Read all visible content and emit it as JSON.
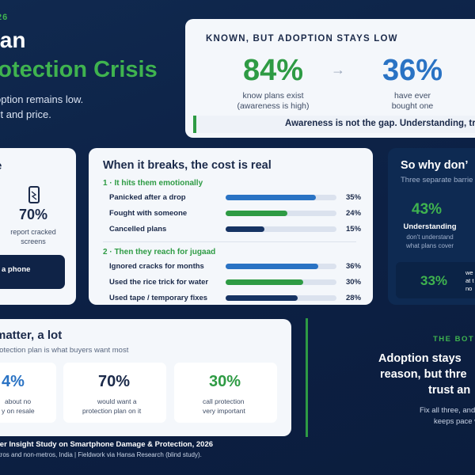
{
  "header": {
    "year": "26",
    "title_line1": "ian",
    "title_line2": "rotection Crisis",
    "subtitle_line1": "option remains low.",
    "subtitle_line2": "st and price."
  },
  "known_card": {
    "title": "KNOWN, BUT ADOPTION STAYS LOW",
    "left_pct": "84%",
    "left_caption_1": "know plans exist",
    "left_caption_2": "(awareness is high)",
    "arrow": "→",
    "right_pct": "36%",
    "right_caption_1": "have ever",
    "right_caption_2": "bought one",
    "banner": "Awareness is not the gap. Understanding, tru",
    "colors": {
      "left": "#2e9b44",
      "right": "#2a73c4"
    }
  },
  "left_card": {
    "title_fragment": "e",
    "icon": "phone-icon",
    "pct": "70%",
    "caption_1": "report cracked",
    "caption_2": "screens",
    "button_label": "a phone"
  },
  "cost_card": {
    "title": "When it breaks, the cost is real",
    "section1": "1 · It hits them emotionally",
    "section2": "2 · Then they reach for jugaad",
    "rows1": [
      {
        "label": "Panicked after a drop",
        "value": "35%",
        "pct": 35,
        "color": "#2a73c4"
      },
      {
        "label": "Fought with someone",
        "value": "24%",
        "pct": 24,
        "color": "#2e9b44"
      },
      {
        "label": "Cancelled plans",
        "value": "15%",
        "pct": 15,
        "color": "#163363"
      }
    ],
    "rows2": [
      {
        "label": "Ignored cracks for months",
        "value": "36%",
        "pct": 36,
        "color": "#2a73c4"
      },
      {
        "label": "Used the rice trick for water",
        "value": "30%",
        "pct": 30,
        "color": "#2e9b44"
      },
      {
        "label": "Used tape / temporary fixes",
        "value": "28%",
        "pct": 28,
        "color": "#163363"
      }
    ]
  },
  "why_card": {
    "title": "So why don’",
    "subtitle": "Three separate barrie",
    "pct": "43%",
    "label": "Understanding",
    "caption_1": "don't understand",
    "caption_2": "what plans cover",
    "box_pct": "33%",
    "box_text_1": "we",
    "box_text_2": "at t",
    "box_text_3": "no"
  },
  "matter_card": {
    "title": "matter, a lot",
    "subtitle": "rotection plan is what buyers want most",
    "stats": [
      {
        "pct": "4%",
        "caption_1": "about no",
        "caption_2": "y on resale",
        "color": "#2a73c4"
      },
      {
        "pct": "70%",
        "caption_1": "would want a",
        "caption_2": "protection plan on it",
        "color": "#1b2a4a"
      },
      {
        "pct": "30%",
        "caption_1": "call protection",
        "caption_2": "very important",
        "color": "#2e9b44"
      }
    ]
  },
  "bottom_panel": {
    "label": "THE BOT",
    "heading_1": "Adoption stays",
    "heading_2": "reason, but thre",
    "heading_3": "trust an",
    "caption_1": "Fix all three, and",
    "caption_2": "keeps pace with"
  },
  "footer": {
    "line1": "ner Insight Study on Smartphone Damage & Protection, 2026",
    "line2": "etros and non-metros, India | Fieldwork via Hansa Research (blind study)."
  }
}
